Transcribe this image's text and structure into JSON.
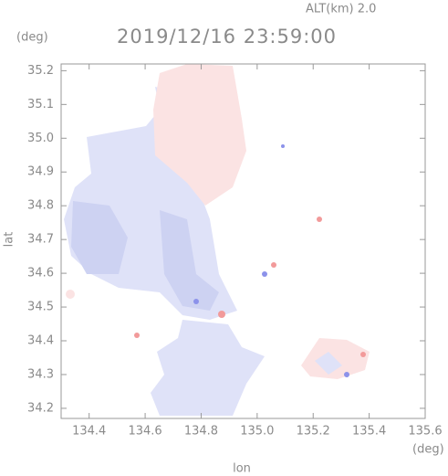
{
  "header": {
    "altitude": "ALT(km)  2.0",
    "datetime": "2019/12/16 23:59:00",
    "y_unit": "(deg)",
    "x_unit": "(deg)"
  },
  "chart_data": {
    "type": "map",
    "xlabel": "lon",
    "ylabel": "lat",
    "xlim": [
      134.3,
      135.6
    ],
    "ylim": [
      34.17,
      35.22
    ],
    "xticks": [
      134.4,
      134.6,
      134.8,
      {
        "value": 135,
        "label": "135.0"
      },
      135.2,
      135.4,
      135.6
    ],
    "yticks": [
      34.2,
      34.3,
      34.4,
      34.5,
      34.6,
      34.7,
      34.8,
      34.9,
      {
        "value": 35,
        "label": "35.0"
      },
      35.1,
      35.2
    ]
  }
}
